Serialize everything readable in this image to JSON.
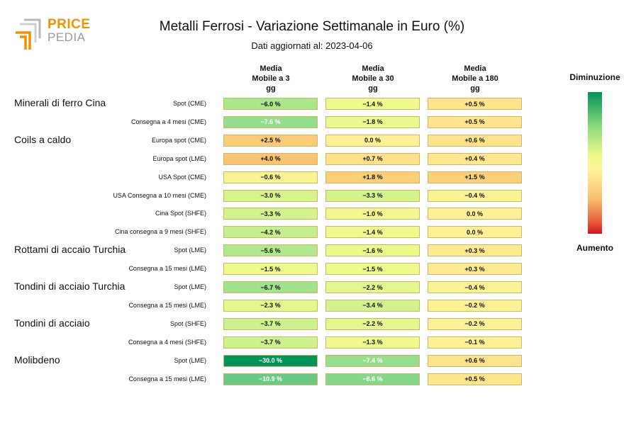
{
  "brand": {
    "line1": "PRICE",
    "line2": "PEDIA"
  },
  "chart_data": {
    "type": "table",
    "title": "Metalli Ferrosi - Variazione Settimanale in Euro (%)",
    "subtitle": "Dati aggiornati al: 2023-04-06",
    "columns": [
      "Media\nMobile a 3\ngg",
      "Media\nMobile a 30\ngg",
      "Media\nMobile a 180\ngg"
    ],
    "legend": {
      "top": "Diminuzione",
      "bottom": "Aumento"
    },
    "groups": [
      {
        "name": "Minerali di ferro Cina",
        "rows": [
          {
            "label": "Spot (CME)",
            "values": [
              -6.0,
              -1.4,
              0.5
            ]
          },
          {
            "label": "Consegna a 4 mesi (CME)",
            "values": [
              -7.6,
              -1.8,
              0.5
            ]
          }
        ]
      },
      {
        "name": "Coils a caldo",
        "rows": [
          {
            "label": "Europa spot (CME)",
            "values": [
              2.5,
              0.0,
              0.6
            ]
          },
          {
            "label": "Europa spot (LME)",
            "values": [
              4.0,
              0.7,
              0.4
            ]
          },
          {
            "label": "USA Spot (CME)",
            "values": [
              -0.6,
              1.8,
              1.5
            ]
          },
          {
            "label": "USA Consegna a 10 mesi (CME)",
            "values": [
              -3.0,
              -3.3,
              -0.4
            ]
          },
          {
            "label": "Cina Spot (SHFE)",
            "values": [
              -3.3,
              -1.0,
              0.0
            ]
          },
          {
            "label": "Cina consegna a 9 mesi (SHFE)",
            "values": [
              -4.2,
              -1.4,
              0.0
            ]
          }
        ]
      },
      {
        "name": "Rottami di accaio Turchia",
        "rows": [
          {
            "label": "Spot (LME)",
            "values": [
              -5.6,
              -1.6,
              0.3
            ]
          },
          {
            "label": "Consegna a 15 mesi (LME)",
            "values": [
              -1.5,
              -1.5,
              0.3
            ]
          }
        ]
      },
      {
        "name": "Tondini di acciaio Turchia",
        "rows": [
          {
            "label": "Spot (LME)",
            "values": [
              -6.7,
              -2.2,
              -0.4
            ]
          },
          {
            "label": "Consegna a 15 mesi (LME)",
            "values": [
              -2.3,
              -3.4,
              -0.2
            ]
          }
        ]
      },
      {
        "name": "Tondini di acciaio",
        "rows": [
          {
            "label": "Spot (SHFE)",
            "values": [
              -3.7,
              -2.2,
              -0.2
            ]
          },
          {
            "label": "Consegna a 4 mesi (SHFE)",
            "values": [
              -3.7,
              -1.3,
              -0.1
            ]
          }
        ]
      },
      {
        "name": "Molibdeno",
        "rows": [
          {
            "label": "Spot (LME)",
            "values": [
              -30.0,
              -7.4,
              0.6
            ]
          },
          {
            "label": "Consegna a 15 mesi (LME)",
            "values": [
              -10.9,
              -8.6,
              0.5
            ]
          }
        ]
      }
    ]
  }
}
